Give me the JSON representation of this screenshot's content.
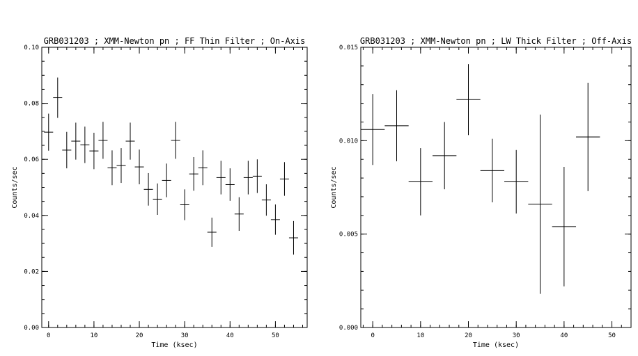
{
  "chart_data": [
    {
      "type": "scatter",
      "title": "GRB031203 ; XMM-Newton pn ; FF Thin Filter ; On-Axis",
      "xlabel": "Time (ksec)",
      "ylabel": "Counts/sec",
      "xlim": [
        -1.5,
        57
      ],
      "ylim": [
        0,
        0.1
      ],
      "xticks": [
        0,
        10,
        20,
        30,
        40,
        50
      ],
      "xtick_labels": [
        "0",
        "10",
        "20",
        "30",
        "40",
        "50"
      ],
      "yticks": [
        0,
        0.02,
        0.04,
        0.06,
        0.08,
        0.1
      ],
      "ytick_labels": [
        "0.00",
        "0.02",
        "0.04",
        "0.06",
        "0.08",
        "0.10"
      ],
      "x_minor_step": 2,
      "y_minor_step": 0.005,
      "grid": false,
      "points": [
        {
          "x": 0,
          "y": 0.0697,
          "xerr": 1,
          "yerr": 0.0066
        },
        {
          "x": 2,
          "y": 0.082,
          "xerr": 1,
          "yerr": 0.0072
        },
        {
          "x": 4,
          "y": 0.0633,
          "xerr": 1,
          "yerr": 0.0065
        },
        {
          "x": 6,
          "y": 0.0665,
          "xerr": 1,
          "yerr": 0.0066
        },
        {
          "x": 8,
          "y": 0.0652,
          "xerr": 1,
          "yerr": 0.0065
        },
        {
          "x": 10,
          "y": 0.063,
          "xerr": 1,
          "yerr": 0.0065
        },
        {
          "x": 12,
          "y": 0.0668,
          "xerr": 1,
          "yerr": 0.0066
        },
        {
          "x": 14,
          "y": 0.057,
          "xerr": 1,
          "yerr": 0.0062
        },
        {
          "x": 16,
          "y": 0.0578,
          "xerr": 1,
          "yerr": 0.0062
        },
        {
          "x": 18,
          "y": 0.0665,
          "xerr": 1,
          "yerr": 0.0066
        },
        {
          "x": 20,
          "y": 0.0573,
          "xerr": 1,
          "yerr": 0.0062
        },
        {
          "x": 22,
          "y": 0.0493,
          "xerr": 1,
          "yerr": 0.0058
        },
        {
          "x": 24,
          "y": 0.0458,
          "xerr": 1,
          "yerr": 0.0056
        },
        {
          "x": 26,
          "y": 0.0525,
          "xerr": 1,
          "yerr": 0.006
        },
        {
          "x": 28,
          "y": 0.0668,
          "xerr": 1,
          "yerr": 0.0066
        },
        {
          "x": 30,
          "y": 0.0438,
          "xerr": 1,
          "yerr": 0.0055
        },
        {
          "x": 32,
          "y": 0.0548,
          "xerr": 1,
          "yerr": 0.006
        },
        {
          "x": 34,
          "y": 0.057,
          "xerr": 1,
          "yerr": 0.0062
        },
        {
          "x": 36,
          "y": 0.034,
          "xerr": 1,
          "yerr": 0.0052
        },
        {
          "x": 38,
          "y": 0.0535,
          "xerr": 1,
          "yerr": 0.006
        },
        {
          "x": 40,
          "y": 0.051,
          "xerr": 1,
          "yerr": 0.0058
        },
        {
          "x": 42,
          "y": 0.0405,
          "xerr": 1,
          "yerr": 0.006
        },
        {
          "x": 44,
          "y": 0.0535,
          "xerr": 1,
          "yerr": 0.006
        },
        {
          "x": 46,
          "y": 0.054,
          "xerr": 1,
          "yerr": 0.006
        },
        {
          "x": 48,
          "y": 0.0455,
          "xerr": 1,
          "yerr": 0.0056
        },
        {
          "x": 50,
          "y": 0.0385,
          "xerr": 1,
          "yerr": 0.0054
        },
        {
          "x": 52,
          "y": 0.053,
          "xerr": 1,
          "yerr": 0.006
        },
        {
          "x": 54,
          "y": 0.032,
          "xerr": 1,
          "yerr": 0.006
        }
      ]
    },
    {
      "type": "scatter",
      "title": "GRB031203 ; XMM-Newton pn ; LW Thick Filter ; Off-Axis",
      "xlabel": "Time (ksec)",
      "ylabel": "Counts/sec",
      "xlim": [
        -2.5,
        54
      ],
      "ylim": [
        0,
        0.015
      ],
      "xticks": [
        0,
        10,
        20,
        30,
        40,
        50
      ],
      "xtick_labels": [
        "0",
        "10",
        "20",
        "30",
        "40",
        "50"
      ],
      "yticks": [
        0,
        0.005,
        0.01,
        0.015
      ],
      "ytick_labels": [
        "0.000",
        "0.005",
        "0.010",
        "0.015"
      ],
      "x_minor_step": 2,
      "y_minor_step": 0.001,
      "grid": false,
      "points": [
        {
          "x": 0,
          "y": 0.0106,
          "xerr": 2.5,
          "yerr": 0.0019
        },
        {
          "x": 5,
          "y": 0.0108,
          "xerr": 2.5,
          "yerr": 0.0019
        },
        {
          "x": 10,
          "y": 0.0078,
          "xerr": 2.5,
          "yerr": 0.0018
        },
        {
          "x": 15,
          "y": 0.0092,
          "xerr": 2.5,
          "yerr": 0.0018
        },
        {
          "x": 20,
          "y": 0.0122,
          "xerr": 2.5,
          "yerr": 0.0019
        },
        {
          "x": 25,
          "y": 0.0084,
          "xerr": 2.5,
          "yerr": 0.0017
        },
        {
          "x": 30,
          "y": 0.0078,
          "xerr": 2.5,
          "yerr": 0.0017
        },
        {
          "x": 35,
          "y": 0.0066,
          "xerr": 2.5,
          "yerr": 0.0048
        },
        {
          "x": 40,
          "y": 0.0054,
          "xerr": 2.5,
          "yerr": 0.0032
        },
        {
          "x": 45,
          "y": 0.0102,
          "xerr": 2.5,
          "yerr": 0.0029
        }
      ]
    }
  ]
}
